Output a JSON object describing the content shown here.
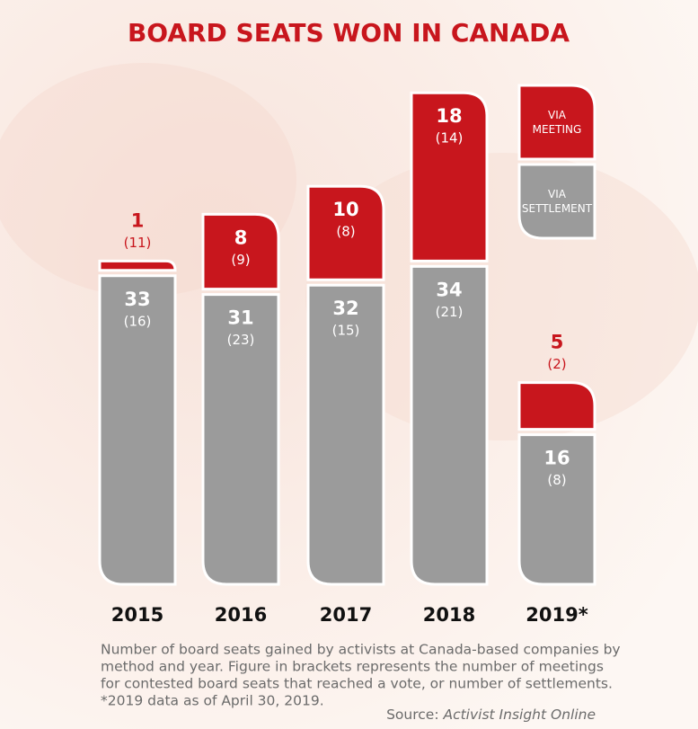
{
  "chart_data": {
    "type": "stacked_bar",
    "title": "BOARD SEATS WON IN CANADA",
    "categories": [
      "2015",
      "2016",
      "2017",
      "2018",
      "2019*"
    ],
    "series": [
      {
        "name": "VIA SETTLEMENT",
        "color": "#9b9b9b",
        "values": [
          33,
          31,
          32,
          34,
          16
        ],
        "bracket_labels": [
          "(16)",
          "(23)",
          "(15)",
          "(21)",
          "(8)"
        ]
      },
      {
        "name": "VIA MEETING",
        "color": "#c8161d",
        "values": [
          1,
          8,
          10,
          18,
          5
        ],
        "bracket_labels": [
          "(11)",
          "(9)",
          "(8)",
          "(14)",
          "(2)"
        ]
      }
    ],
    "note": [
      "Number of board seats gained by activists at Canada-based companies by",
      "method and year. Figure in brackets represents the number of meetings",
      "for contested board seats that reached a vote, or number of settlements.",
      "*2019 data as of April 30, 2019."
    ],
    "source_label": "Source:",
    "source": "Activist Insight Online"
  }
}
